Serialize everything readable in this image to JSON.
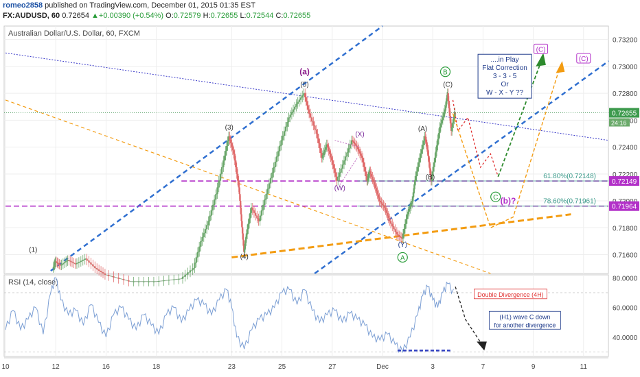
{
  "header": {
    "line1_user": "romeo2858",
    "line1_rest": " published on TradingView.com, December 01, 2015 01:35 EST",
    "symbol": "FX:AUDUSD, 60",
    "last": "0.72654",
    "change": "+0.00390 (+0.54%)",
    "o_label": "O:",
    "o": "0.72579",
    "h_label": "H:",
    "h": "0.72655",
    "l_label": "L:",
    "l": "0.72544",
    "c_label": "C:",
    "c": "0.72655"
  },
  "colors": {
    "up": "#6aa76a",
    "down": "#e06a6a",
    "rsi": "#7c9fd4",
    "channel": "#2f6fd0",
    "orange": "#f39c12",
    "purple": "#b230c8",
    "green": "#2d8a2d",
    "red": "#e03030",
    "blueline": "#3838c8"
  },
  "chart_data": [
    {
      "type": "line",
      "title": "Australian Dollar/U.S. Dollar, 60, FXCM",
      "ylim": [
        0.7146,
        0.733
      ],
      "y_ticks": [
        0.716,
        0.718,
        0.72,
        0.722,
        0.724,
        0.726,
        0.728,
        0.73,
        0.732
      ],
      "y_tick_labels": [
        "0.71600",
        "0.71800",
        "0.72000",
        "0.72200",
        "0.72400",
        "0.72600",
        "0.72800",
        "0.73000",
        "0.73200"
      ],
      "price_tag": {
        "value": 0.72655,
        "label": "0.72655",
        "countdown": "24:16"
      },
      "x_tick_labels": [
        {
          "label": "10",
          "d": 0
        },
        {
          "label": "12",
          "d": 2
        },
        {
          "label": "16",
          "d": 4
        },
        {
          "label": "18",
          "d": 6
        },
        {
          "label": "23",
          "d": 9
        },
        {
          "label": "25",
          "d": 11
        },
        {
          "label": "27",
          "d": 13
        },
        {
          "label": "Dec",
          "d": 15
        },
        {
          "label": "3",
          "d": 17
        },
        {
          "label": "7",
          "d": 19
        },
        {
          "label": "9",
          "d": 21
        },
        {
          "label": "11",
          "d": 23
        }
      ],
      "price_path": [
        [
          1.9,
          0.715
        ],
        [
          2.0,
          0.7155
        ],
        [
          2.2,
          0.7152
        ],
        [
          2.5,
          0.7156
        ],
        [
          2.8,
          0.7153
        ],
        [
          3.2,
          0.7157
        ],
        [
          3.6,
          0.715
        ],
        [
          4.0,
          0.7145
        ],
        [
          5.0,
          0.714
        ],
        [
          6.0,
          0.714
        ],
        [
          7.0,
          0.7142
        ],
        [
          7.5,
          0.715
        ],
        [
          7.8,
          0.717
        ],
        [
          8.1,
          0.7185
        ],
        [
          8.4,
          0.7205
        ],
        [
          8.7,
          0.723
        ],
        [
          8.9,
          0.7248
        ],
        [
          9.1,
          0.7235
        ],
        [
          9.3,
          0.721
        ],
        [
          9.4,
          0.7185
        ],
        [
          9.5,
          0.7162
        ],
        [
          9.6,
          0.7175
        ],
        [
          9.8,
          0.7195
        ],
        [
          10.1,
          0.7185
        ],
        [
          10.4,
          0.7205
        ],
        [
          10.7,
          0.7225
        ],
        [
          11.0,
          0.7245
        ],
        [
          11.3,
          0.7262
        ],
        [
          11.6,
          0.7272
        ],
        [
          11.9,
          0.728
        ],
        [
          12.1,
          0.7265
        ],
        [
          12.4,
          0.725
        ],
        [
          12.6,
          0.7232
        ],
        [
          12.8,
          0.7242
        ],
        [
          13.0,
          0.723
        ],
        [
          13.2,
          0.7215
        ],
        [
          13.5,
          0.723
        ],
        [
          13.8,
          0.7245
        ],
        [
          14.0,
          0.724
        ],
        [
          14.2,
          0.7232
        ],
        [
          14.4,
          0.7215
        ],
        [
          14.5,
          0.7222
        ],
        [
          14.7,
          0.7212
        ],
        [
          14.9,
          0.72
        ],
        [
          15.1,
          0.7195
        ],
        [
          15.3,
          0.7185
        ],
        [
          15.6,
          0.7175
        ],
        [
          15.8,
          0.7172
        ],
        [
          16.0,
          0.719
        ],
        [
          16.2,
          0.72
        ],
        [
          16.3,
          0.7215
        ],
        [
          16.5,
          0.7232
        ],
        [
          16.7,
          0.7248
        ],
        [
          16.8,
          0.7238
        ],
        [
          16.95,
          0.7215
        ],
        [
          17.1,
          0.7232
        ],
        [
          17.3,
          0.7255
        ],
        [
          17.5,
          0.7268
        ],
        [
          17.6,
          0.728
        ],
        [
          17.75,
          0.7252
        ],
        [
          17.9,
          0.7266
        ]
      ],
      "wave_labels": [
        {
          "text": "(1)",
          "d": 1.1,
          "v": 0.7162,
          "color": "#333333"
        },
        {
          "text": "(3)",
          "d": 8.9,
          "v": 0.7253,
          "color": "#333333"
        },
        {
          "text": "(4)",
          "d": 9.5,
          "v": 0.7157,
          "color": "#333333"
        },
        {
          "text": "(5)",
          "d": 11.9,
          "v": 0.7285,
          "color": "#333333"
        },
        {
          "text": "(a)",
          "d": 11.9,
          "v": 0.7294,
          "color": "#8a1a8a",
          "bold": true
        },
        {
          "text": "(W)",
          "d": 13.3,
          "v": 0.7208,
          "color": "#7a2a9a"
        },
        {
          "text": "(X)",
          "d": 14.1,
          "v": 0.7248,
          "color": "#7a2a9a"
        },
        {
          "text": "(Y)",
          "d": 15.8,
          "v": 0.7166,
          "color": "#1e3a8a"
        },
        {
          "text": "(A)",
          "d": 16.6,
          "v": 0.7252,
          "color": "#333333"
        },
        {
          "text": "(B)",
          "d": 16.9,
          "v": 0.7216,
          "color": "#333333"
        },
        {
          "text": "(C)",
          "d": 17.6,
          "v": 0.7285,
          "color": "#333333"
        },
        {
          "text": "(b)?",
          "d": 20.0,
          "v": 0.7198,
          "color": "#b230c8",
          "bold": true
        }
      ],
      "circle_labels": [
        {
          "text": "A",
          "d": 15.8,
          "v": 0.7158
        },
        {
          "text": "B",
          "d": 17.5,
          "v": 0.7296
        },
        {
          "text": "C",
          "d": 19.5,
          "v": 0.7203
        }
      ],
      "target_labels": [
        {
          "text": "(C)",
          "d": 21.3,
          "v": 0.7312
        },
        {
          "text": "(C)",
          "d": 23.0,
          "v": 0.7305
        }
      ],
      "fib_levels": [
        {
          "label": "61.80%(0.72148)",
          "value": 0.72148,
          "tag": "0.72149"
        },
        {
          "label": "78.60%(0.71961)",
          "value": 0.71961,
          "tag": "0.71964"
        }
      ],
      "note_lines": [
        "....in Play",
        "Flat Correction",
        "3 - 3 - 5",
        "Or",
        "W - X - Y ??"
      ]
    },
    {
      "type": "line",
      "title": "RSI (14, close)",
      "ylim": [
        27,
        82
      ],
      "y_ticks": [
        40,
        60,
        80
      ],
      "y_tick_labels": [
        "40.0000",
        "60.0000",
        "80.0000"
      ],
      "levels": [
        30,
        70
      ],
      "annotations": [
        {
          "text": "Double Divergence (4H)",
          "color": "#e03030"
        },
        {
          "text": "(H1) wave C down",
          "color": "#1e3a8a"
        },
        {
          "text": "for another divergence",
          "color": "#1e3a8a"
        }
      ],
      "rsi_knots": [
        [
          0,
          45
        ],
        [
          0.3,
          58
        ],
        [
          0.6,
          45
        ],
        [
          0.9,
          52
        ],
        [
          1.2,
          60
        ],
        [
          1.5,
          42
        ],
        [
          1.8,
          70
        ],
        [
          2.0,
          80
        ],
        [
          2.2,
          65
        ],
        [
          2.5,
          55
        ],
        [
          2.8,
          58
        ],
        [
          3.1,
          48
        ],
        [
          3.4,
          62
        ],
        [
          3.7,
          50
        ],
        [
          4.0,
          40
        ],
        [
          4.3,
          55
        ],
        [
          4.6,
          60
        ],
        [
          4.9,
          52
        ],
        [
          5.2,
          45
        ],
        [
          5.5,
          55
        ],
        [
          5.8,
          48
        ],
        [
          6.1,
          42
        ],
        [
          6.4,
          55
        ],
        [
          6.7,
          60
        ],
        [
          7.0,
          50
        ],
        [
          7.3,
          58
        ],
        [
          7.6,
          65
        ],
        [
          7.9,
          62
        ],
        [
          8.2,
          55
        ],
        [
          8.5,
          65
        ],
        [
          8.8,
          72
        ],
        [
          9.0,
          60
        ],
        [
          9.2,
          40
        ],
        [
          9.5,
          32
        ],
        [
          9.8,
          45
        ],
        [
          10.1,
          52
        ],
        [
          10.4,
          55
        ],
        [
          10.7,
          60
        ],
        [
          11.0,
          70
        ],
        [
          11.3,
          72
        ],
        [
          11.6,
          62
        ],
        [
          11.9,
          72
        ],
        [
          12.2,
          58
        ],
        [
          12.5,
          50
        ],
        [
          12.8,
          55
        ],
        [
          13.1,
          58
        ],
        [
          13.4,
          50
        ],
        [
          13.7,
          56
        ],
        [
          14.0,
          52
        ],
        [
          14.3,
          48
        ],
        [
          14.6,
          40
        ],
        [
          14.9,
          38
        ],
        [
          15.2,
          42
        ],
        [
          15.5,
          35
        ],
        [
          15.8,
          30
        ],
        [
          16.1,
          40
        ],
        [
          16.4,
          55
        ],
        [
          16.6,
          68
        ],
        [
          16.8,
          74
        ],
        [
          17.0,
          65
        ],
        [
          17.2,
          60
        ],
        [
          17.4,
          70
        ],
        [
          17.6,
          76
        ],
        [
          17.9,
          68
        ]
      ]
    }
  ]
}
